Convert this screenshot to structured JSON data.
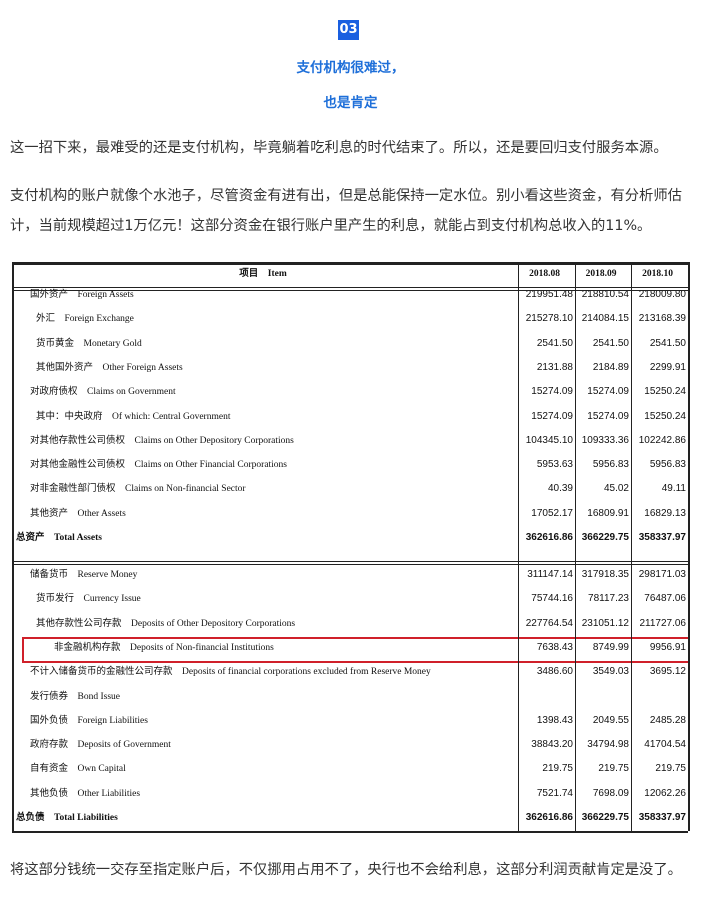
{
  "header": {
    "badge": "03",
    "title_lines": [
      "支付机构很难过，",
      "也是肯定"
    ]
  },
  "paragraphs": [
    "这一招下来，最难受的还是支付机构，毕竟躺着吃利息的时代结束了。所以，还是要回归支付服务本源。",
    "支付机构的账户就像个水池子，尽管资金有进有出，但是总能保持一定水位。别小看这些资金，有分析师估计，当前规模超过1万亿元！这部分资金在银行账户里产生的利息，就能占到支付机构总收入的11%。",
    "将这部分钱统一交存至指定账户后，不仅挪用占用不了，央行也不会给利息，这部分利润贡献肯定是没了。"
  ],
  "table": {
    "columns": [
      "项目　Item",
      "2018.08",
      "2018.09",
      "2018.10"
    ],
    "rows": [
      [
        "国外资产　Foreign Assets",
        "219951.48",
        "218810.54",
        "218009.80"
      ],
      [
        "外汇　Foreign Exchange",
        "215278.10",
        "214084.15",
        "213168.39"
      ],
      [
        "货币黄金　Monetary Gold",
        "2541.50",
        "2541.50",
        "2541.50"
      ],
      [
        "其他国外资产　Other Foreign Assets",
        "2131.88",
        "2184.89",
        "2299.91"
      ],
      [
        "对政府债权　Claims on Government",
        "15274.09",
        "15274.09",
        "15250.24"
      ],
      [
        "其中：中央政府　Of which: Central Government",
        "15274.09",
        "15274.09",
        "15250.24"
      ],
      [
        "对其他存款性公司债权　Claims on Other Depository Corporations",
        "104345.10",
        "109333.36",
        "102242.86"
      ],
      [
        "对其他金融性公司债权　Claims on Other Financial Corporations",
        "5953.63",
        "5956.83",
        "5956.83"
      ],
      [
        "对非金融性部门债权　Claims on Non-financial Sector",
        "40.39",
        "45.02",
        "49.11"
      ],
      [
        "其他资产　Other Assets",
        "17052.17",
        "16809.91",
        "16829.13"
      ],
      [
        "总资产　Total Assets",
        "362616.86",
        "366229.75",
        "358337.97"
      ],
      [
        "储备货币　Reserve Money",
        "311147.14",
        "317918.35",
        "298171.03"
      ],
      [
        "货币发行　Currency Issue",
        "75744.16",
        "78117.23",
        "76487.06"
      ],
      [
        "其他存款性公司存款　Deposits of Other Depository Corporations",
        "227764.54",
        "231051.12",
        "211727.06"
      ],
      [
        "非金融机构存款　Deposits of Non-financial Institutions",
        "7638.43",
        "8749.99",
        "9956.91"
      ],
      [
        "不计入储备货币的金融性公司存款　Deposits of financial corporations excluded from Reserve Money",
        "3486.60",
        "3549.03",
        "3695.12"
      ],
      [
        "发行债券　Bond Issue",
        null,
        null,
        null
      ],
      [
        "国外负债　Foreign Liabilities",
        "1398.43",
        "2049.55",
        "2485.28"
      ],
      [
        "政府存款　Deposits of Government",
        "38843.20",
        "34794.98",
        "41704.54"
      ],
      [
        "自有资金　Own Capital",
        "219.75",
        "219.75",
        "219.75"
      ],
      [
        "其他负债　Other Liabilities",
        "7521.74",
        "7698.09",
        "12062.26"
      ],
      [
        "总负债　Total Liabilities",
        "362616.86",
        "366229.75",
        "358337.97"
      ]
    ]
  }
}
